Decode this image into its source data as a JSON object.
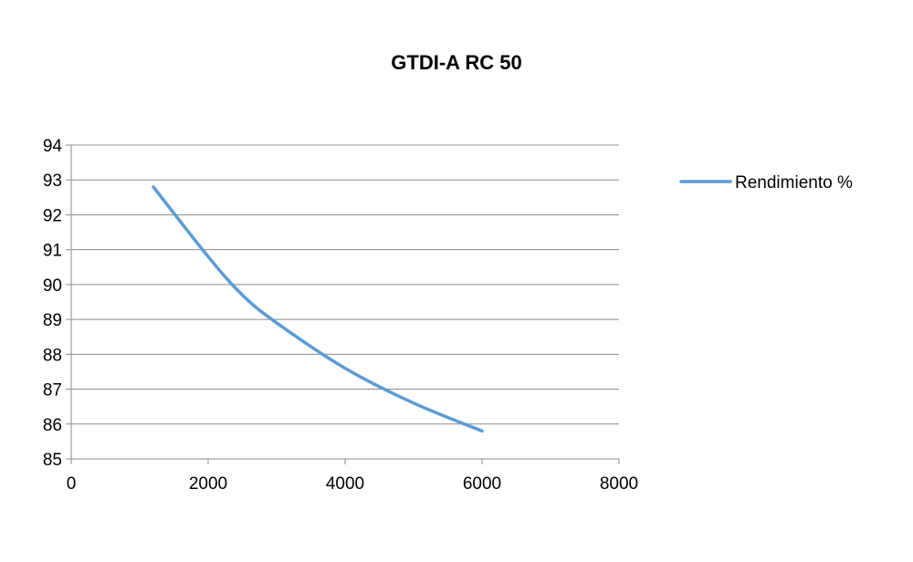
{
  "chart_data": {
    "type": "scatter",
    "title": "GTDI-A RC 50",
    "xlabel": "",
    "ylabel": "",
    "xlim": [
      0,
      8000
    ],
    "ylim": [
      85,
      94
    ],
    "x_ticks": [
      0,
      2000,
      4000,
      6000,
      8000
    ],
    "y_ticks": [
      85,
      86,
      87,
      88,
      89,
      90,
      91,
      92,
      93,
      94
    ],
    "grid": "horizontal",
    "legend_position": "right",
    "series": [
      {
        "name": "Rendimiento %",
        "color": "#5b9bd5",
        "smooth": true,
        "markers": false,
        "x": [
          1200,
          2000,
          2500,
          3000,
          4000,
          5000,
          6000
        ],
        "y": [
          92.8,
          90.8,
          89.7,
          88.9,
          87.6,
          86.6,
          85.8
        ]
      }
    ]
  }
}
